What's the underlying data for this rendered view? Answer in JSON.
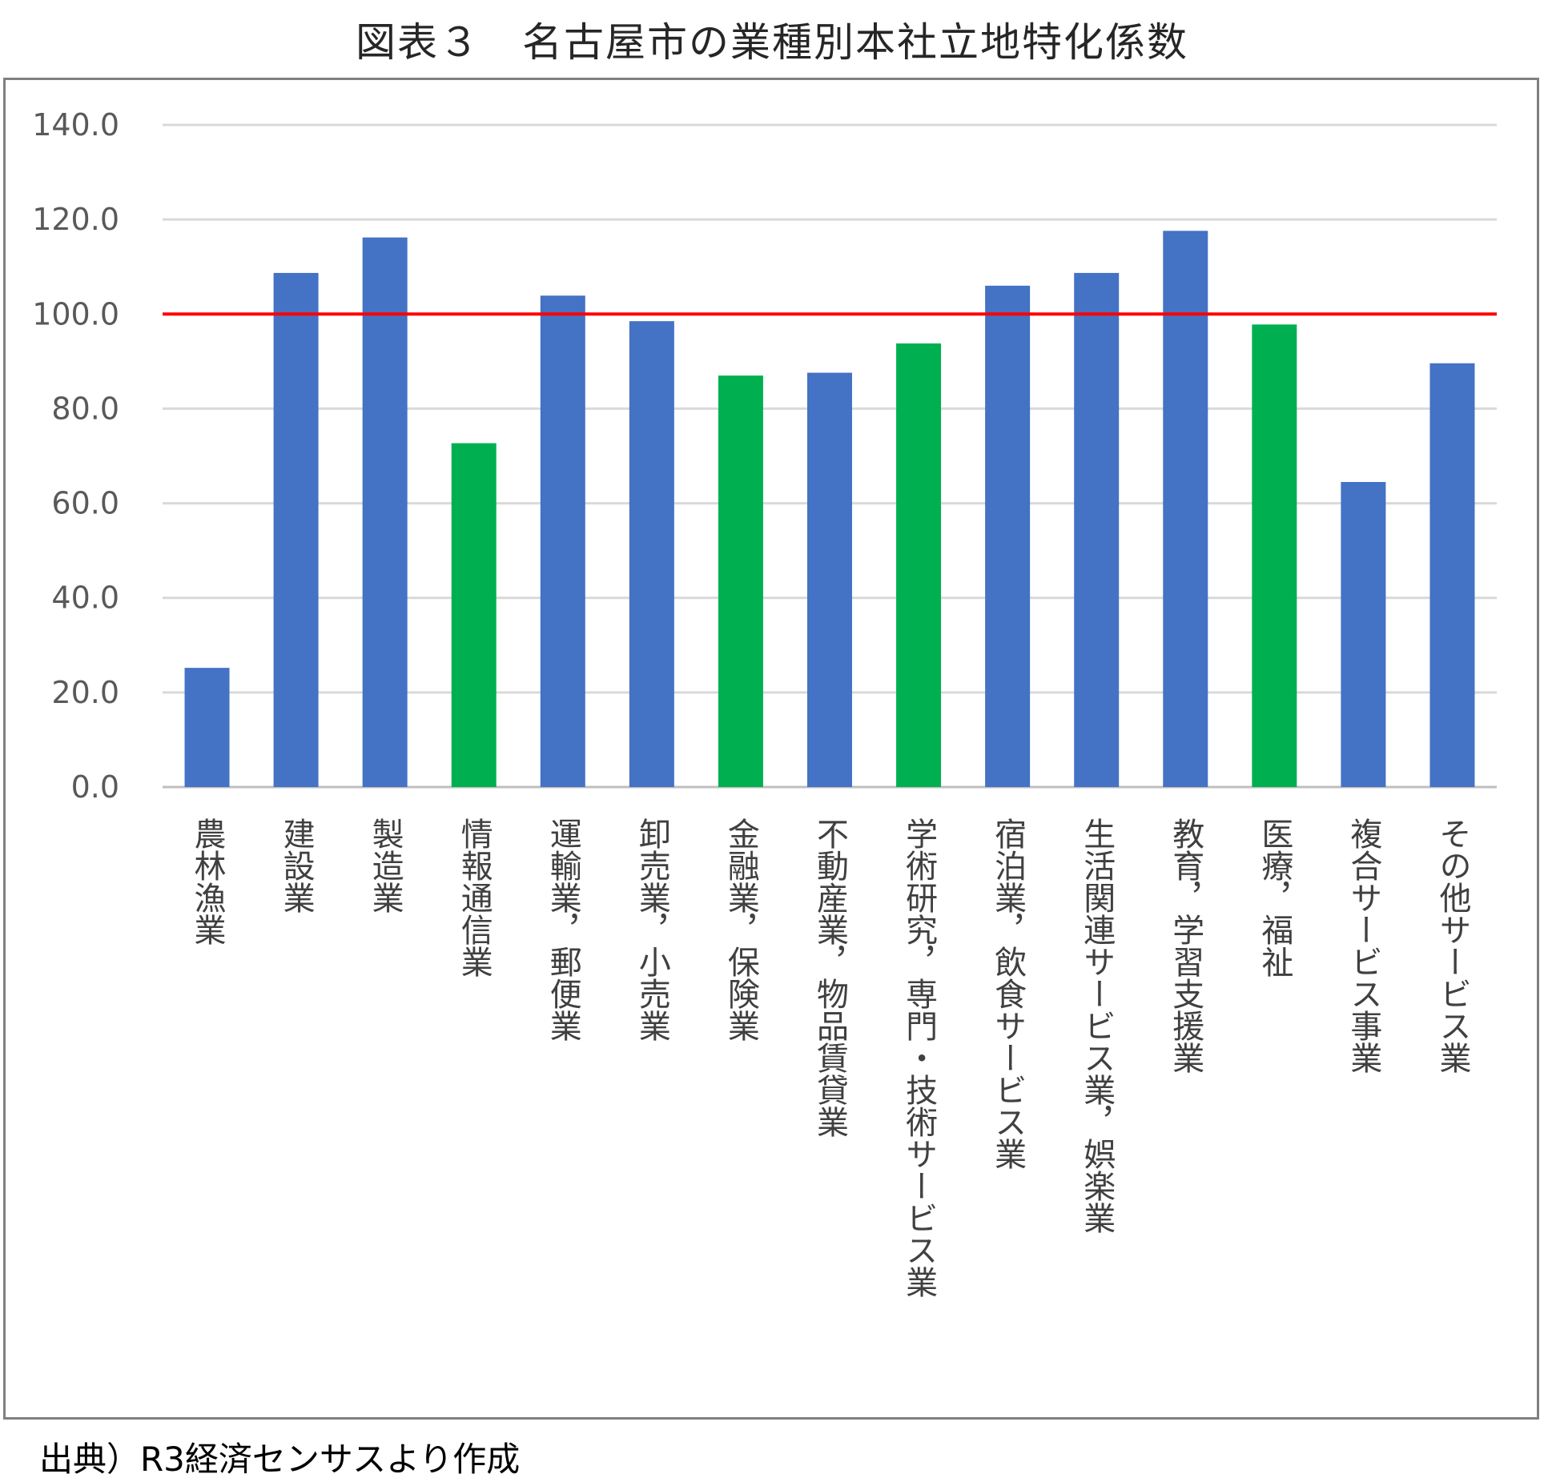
{
  "chart_data": {
    "type": "bar",
    "title": "図表３　名古屋市の業種別本社立地特化係数",
    "xlabel": "",
    "ylabel": "",
    "ylim": [
      0,
      140
    ],
    "y_ticks": [
      "0.0",
      "20.0",
      "40.0",
      "60.0",
      "80.0",
      "100.0",
      "120.0",
      "140.0"
    ],
    "grid": true,
    "legend": "none",
    "reference_line": {
      "value": 100,
      "color": "#FF0000"
    },
    "colors": {
      "blue": "#4472C4",
      "green": "#00B050",
      "grid": "#D9D9D9",
      "axis": "#BFBFBF"
    },
    "categories": [
      "農林漁業",
      "建設業",
      "製造業",
      "情報通信業",
      "運輸業，郵便業",
      "卸売業，小売業",
      "金融業，保険業",
      "不動産業，物品賃貸業",
      "学術研究，専門・技術サービス業",
      "宿泊業，飲食サービス業",
      "生活関連サービス業，娯楽業",
      "教育，学習支援業",
      "医療，福祉",
      "複合サービス事業",
      "その他サービス業"
    ],
    "values": [
      25.2,
      108.7,
      116.2,
      72.7,
      103.9,
      98.5,
      87.0,
      87.6,
      93.8,
      106.0,
      108.7,
      117.6,
      97.8,
      64.5,
      89.6
    ],
    "bar_colors": [
      "blue",
      "blue",
      "blue",
      "green",
      "blue",
      "blue",
      "green",
      "blue",
      "green",
      "blue",
      "blue",
      "blue",
      "green",
      "blue",
      "blue"
    ]
  },
  "source_note": "出典）R3経済センサスより作成"
}
